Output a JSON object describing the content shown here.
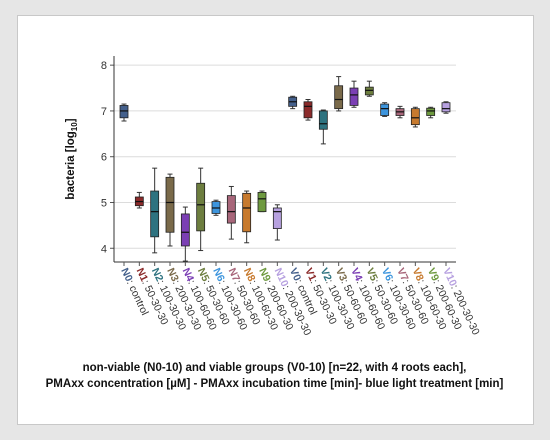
{
  "chart_data": {
    "type": "box",
    "ylabel_main": "bacteria [log",
    "ylabel_sub": "10",
    "ylabel_end": "]",
    "ylim": [
      3.7,
      8.2
    ],
    "yticks": [
      "4",
      "5",
      "6",
      "7",
      "8"
    ],
    "grid": true,
    "caption_line1": "non-viable (N0-10) and viable groups (V0-10) [n=22, with 4 roots each],",
    "caption_line2": "PMAxx concentration [µM] - PMAxx incubation time [min]- blue light treatment [min]",
    "categories": [
      {
        "code": "N0",
        "rest": ": control",
        "color": "#44608c",
        "min": 6.78,
        "q1": 6.85,
        "median": 7.0,
        "q3": 7.12,
        "max": 7.15
      },
      {
        "code": "N1",
        "rest": ": 50-30-30",
        "color": "#8b2a2a",
        "min": 4.88,
        "q1": 4.93,
        "median": 5.02,
        "q3": 5.12,
        "max": 5.22
      },
      {
        "code": "N2",
        "rest": ": 100-30-30",
        "color": "#2e7380",
        "min": 3.9,
        "q1": 4.25,
        "median": 4.8,
        "q3": 5.25,
        "max": 5.75
      },
      {
        "code": "N3",
        "rest": ": 200-30-30",
        "color": "#7a6a4a",
        "min": 4.05,
        "q1": 4.35,
        "median": 5.0,
        "q3": 5.55,
        "max": 5.62
      },
      {
        "code": "N4",
        "rest": ": 100-60-60",
        "color": "#7b3fb4",
        "min": 3.72,
        "q1": 4.05,
        "median": 4.35,
        "q3": 4.75,
        "max": 4.9
      },
      {
        "code": "N5",
        "rest": ": 50-30-60",
        "color": "#6d7e3f",
        "min": 3.95,
        "q1": 4.38,
        "median": 4.95,
        "q3": 5.42,
        "max": 5.75
      },
      {
        "code": "N6",
        "rest": ": 100-30-60",
        "color": "#3d95dd",
        "min": 4.72,
        "q1": 4.76,
        "median": 4.88,
        "q3": 5.02,
        "max": 5.05
      },
      {
        "code": "N7",
        "rest": ": 50-30-60",
        "color": "#a8667a",
        "min": 4.2,
        "q1": 4.55,
        "median": 4.8,
        "q3": 5.15,
        "max": 5.35
      },
      {
        "code": "N8",
        "rest": ": 100-60-30",
        "color": "#c77a2e",
        "min": 4.12,
        "q1": 4.36,
        "median": 4.88,
        "q3": 5.2,
        "max": 5.25
      },
      {
        "code": "N9",
        "rest": ": 200-60-30",
        "color": "#6e9a3f",
        "min": 4.8,
        "q1": 4.8,
        "median": 5.08,
        "q3": 5.22,
        "max": 5.25
      },
      {
        "code": "N10",
        "rest": ": 200-30-30",
        "color": "#b7a1e0",
        "min": 4.18,
        "q1": 4.43,
        "median": 4.8,
        "q3": 4.88,
        "max": 4.95
      },
      {
        "code": "V0",
        "rest": ": control",
        "color": "#44608c",
        "min": 7.05,
        "q1": 7.1,
        "median": 7.2,
        "q3": 7.3,
        "max": 7.32
      },
      {
        "code": "V1",
        "rest": ": 50-30-30",
        "color": "#8b2a2a",
        "min": 6.8,
        "q1": 6.85,
        "median": 7.1,
        "q3": 7.2,
        "max": 7.25
      },
      {
        "code": "V2",
        "rest": ": 100-30-30",
        "color": "#2e7380",
        "min": 6.28,
        "q1": 6.6,
        "median": 6.72,
        "q3": 7.0,
        "max": 7.02
      },
      {
        "code": "V3",
        "rest": ": 50-60-60",
        "color": "#7a6a4a",
        "min": 7.0,
        "q1": 7.05,
        "median": 7.25,
        "q3": 7.55,
        "max": 7.75
      },
      {
        "code": "V4",
        "rest": ": 100-60-60",
        "color": "#7b3fb4",
        "min": 7.08,
        "q1": 7.12,
        "median": 7.35,
        "q3": 7.5,
        "max": 7.65
      },
      {
        "code": "V5",
        "rest": ": 50-30-60",
        "color": "#6d7e3f",
        "min": 7.32,
        "q1": 7.35,
        "median": 7.45,
        "q3": 7.52,
        "max": 7.65
      },
      {
        "code": "V6",
        "rest": ": 100-30-60",
        "color": "#3d95dd",
        "min": 6.88,
        "q1": 6.9,
        "median": 7.05,
        "q3": 7.15,
        "max": 7.18
      },
      {
        "code": "V7",
        "rest": ": 50-30-60",
        "color": "#a8667a",
        "min": 6.85,
        "q1": 6.9,
        "median": 6.98,
        "q3": 7.05,
        "max": 7.1
      },
      {
        "code": "V8",
        "rest": ": 100-60-30",
        "color": "#c77a2e",
        "min": 6.65,
        "q1": 6.7,
        "median": 6.85,
        "q3": 7.05,
        "max": 7.08
      },
      {
        "code": "V9",
        "rest": ": 200-60-30",
        "color": "#6e9a3f",
        "min": 6.85,
        "q1": 6.9,
        "median": 7.0,
        "q3": 7.06,
        "max": 7.08
      },
      {
        "code": "V10",
        "rest": ": 200-30-30",
        "color": "#b7a1e0",
        "min": 6.95,
        "q1": 6.98,
        "median": 7.05,
        "q3": 7.18,
        "max": 7.2
      }
    ]
  }
}
